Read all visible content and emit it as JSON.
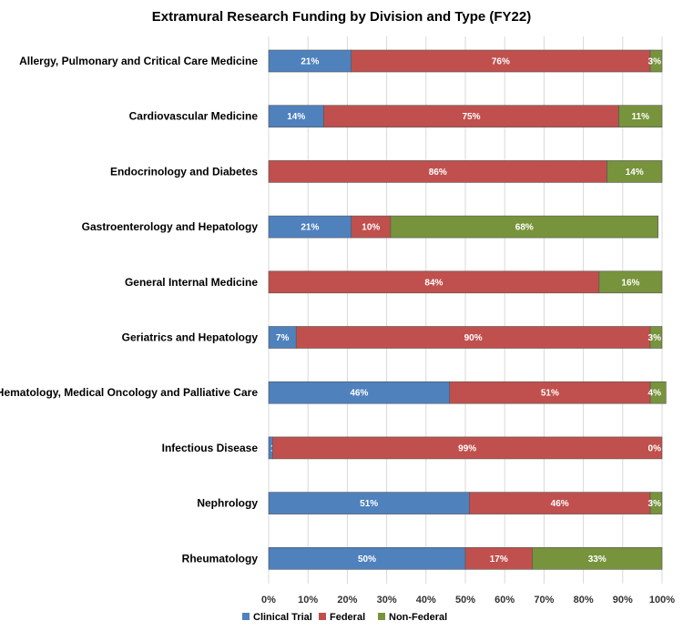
{
  "chart_data": {
    "type": "bar",
    "orientation": "horizontal",
    "stacked": true,
    "title": "Extramural Research Funding by Division and Type (FY22)",
    "categories": [
      "Allergy, Pulmonary and Critical Care Medicine",
      "Cardiovascular Medicine",
      "Endocrinology and Diabetes",
      "Gastroenterology and Hepatology",
      "General Internal Medicine",
      "Geriatrics and Hepatology",
      "Hematology, Medical Oncology and Palliative Care",
      "Infectious Disease",
      "Nephrology",
      "Rheumatology"
    ],
    "series": [
      {
        "name": "Clinical Trial",
        "color": "#4f81bd",
        "values": [
          21,
          14,
          0,
          21,
          0,
          7,
          46,
          1,
          51,
          50
        ]
      },
      {
        "name": "Federal",
        "color": "#c0504d",
        "values": [
          76,
          75,
          86,
          10,
          84,
          90,
          51,
          99,
          46,
          17
        ]
      },
      {
        "name": "Non-Federal",
        "color": "#77933c",
        "values": [
          3,
          11,
          14,
          68,
          16,
          3,
          4,
          0,
          3,
          33
        ]
      }
    ],
    "data_labels": [
      [
        "21%",
        "14%",
        "0%",
        "21%",
        "0%",
        "7%",
        "46%",
        "1%",
        "51%",
        "50%"
      ],
      [
        "76%",
        "75%",
        "86%",
        "10%",
        "84%",
        "90%",
        "51%",
        "99%",
        "46%",
        "17%"
      ],
      [
        "3%",
        "11%",
        "14%",
        "68%",
        "16%",
        "3%",
        "4%",
        "0%",
        "3%",
        "33%"
      ]
    ],
    "xlim": [
      0,
      100
    ],
    "x_ticks": [
      0,
      10,
      20,
      30,
      40,
      50,
      60,
      70,
      80,
      90,
      100
    ],
    "x_tick_labels": [
      "0%",
      "10%",
      "20%",
      "30%",
      "40%",
      "50%",
      "60%",
      "70%",
      "80%",
      "90%",
      "100%"
    ],
    "grid": true,
    "legend_position": "bottom"
  }
}
